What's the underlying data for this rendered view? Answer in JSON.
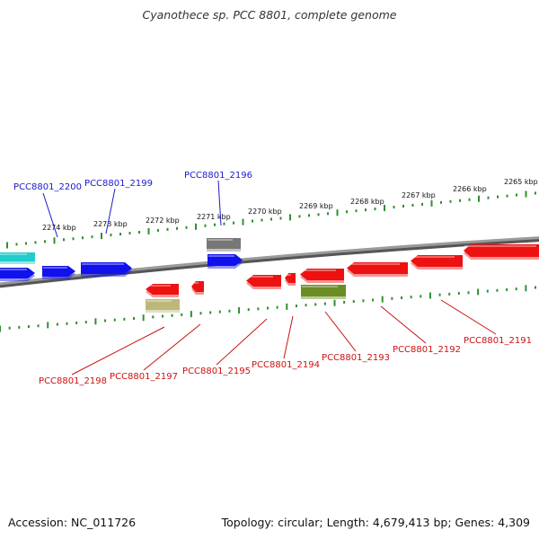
{
  "title": "Cyanothece sp. PCC 8801, complete genome",
  "footer": {
    "accession": "Accession: NC_011726",
    "summary": "Topology: circular; Length: 4,679,413 bp; Genes: 4,309"
  },
  "colors": {
    "backbone": "#8a8a8a",
    "tick": "#2f8f2f",
    "label_top": "#1a1acc",
    "label_bottom": "#cc1111"
  },
  "kbp_ticks": [
    {
      "label": "2274 kbp"
    },
    {
      "label": "2273 kbp"
    },
    {
      "label": "2272 kbp"
    },
    {
      "label": "2271 kbp"
    },
    {
      "label": "2270 kbp"
    },
    {
      "label": "2269 kbp"
    },
    {
      "label": "2268 kbp"
    },
    {
      "label": "2267 kbp"
    },
    {
      "label": "2266 kbp"
    },
    {
      "label": "2265 kbp"
    }
  ],
  "genes_top": [
    {
      "name": "PCC8801_2200",
      "color": "#1111ee"
    },
    {
      "name": "PCC8801_2199",
      "color": "#1111ee"
    },
    {
      "name": "PCC8801_2196",
      "color": "#1111ee"
    }
  ],
  "genes_bottom": [
    {
      "name": "PCC8801_2198",
      "color": "#ee1111"
    },
    {
      "name": "PCC8801_2197",
      "color": "#ee1111"
    },
    {
      "name": "PCC8801_2195",
      "color": "#ee1111"
    },
    {
      "name": "PCC8801_2194",
      "color": "#ee1111"
    },
    {
      "name": "PCC8801_2193",
      "color": "#ee1111"
    },
    {
      "name": "PCC8801_2192",
      "color": "#ee1111"
    },
    {
      "name": "PCC8801_2191",
      "color": "#ee1111"
    }
  ],
  "features": [
    {
      "color": "#22cccc"
    },
    {
      "color": "#777777"
    },
    {
      "color": "#bdb77a"
    },
    {
      "color": "#6b8e23"
    }
  ]
}
